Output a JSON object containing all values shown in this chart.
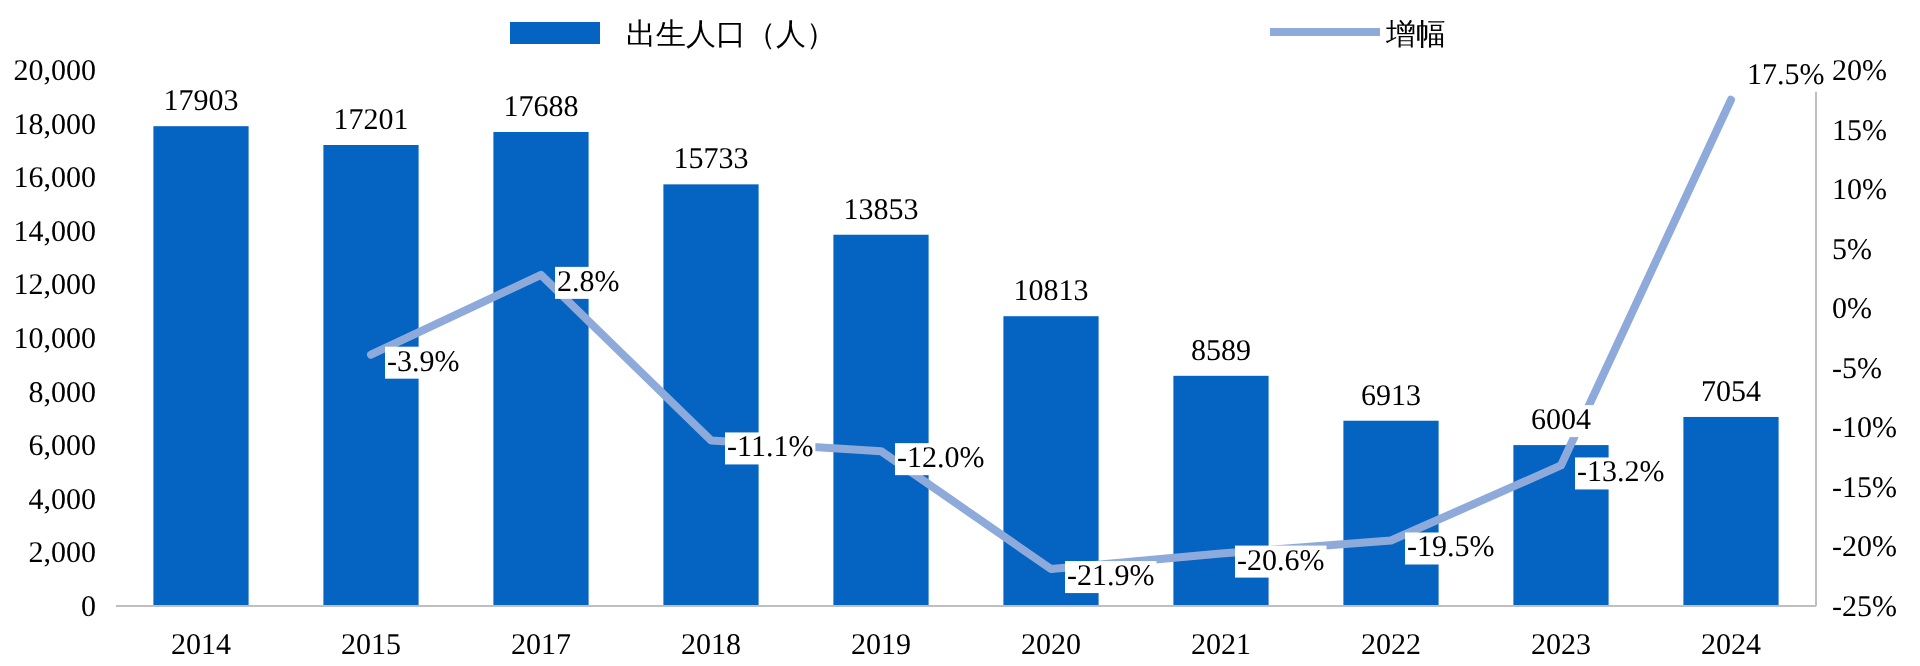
{
  "chart_data": {
    "type": "bar",
    "categories": [
      "2014",
      "2015",
      "2017",
      "2018",
      "2019",
      "2020",
      "2021",
      "2022",
      "2023",
      "2024"
    ],
    "series": [
      {
        "name": "出生人口（人）",
        "color": "#0563c1",
        "values": [
          17903,
          17201,
          17688,
          15733,
          13853,
          10813,
          8589,
          6913,
          6004,
          7054
        ],
        "value_labels": [
          "17903",
          "17201",
          "17688",
          "15733",
          "13853",
          "10813",
          "8589",
          "6913",
          "6004",
          "7054"
        ]
      },
      {
        "name": "增幅",
        "type": "line",
        "axis": "y2",
        "color": "#8eaadb",
        "values": [
          null,
          -3.9,
          2.8,
          -11.1,
          -12.0,
          -21.9,
          -20.6,
          -19.5,
          -13.2,
          17.5
        ],
        "value_labels": [
          null,
          "-3.9%",
          "2.8%",
          "-11.1%",
          "-12.0%",
          "-21.9%",
          "-20.6%",
          "-19.5%",
          "-13.2%",
          "17.5%"
        ]
      }
    ],
    "ylim": [
      0,
      20000
    ],
    "yticks": [
      {
        "value": 0,
        "label": "0"
      },
      {
        "value": 2000,
        "label": "2,000"
      },
      {
        "value": 4000,
        "label": "4,000"
      },
      {
        "value": 6000,
        "label": "6,000"
      },
      {
        "value": 8000,
        "label": "8,000"
      },
      {
        "value": 10000,
        "label": "10,000"
      },
      {
        "value": 12000,
        "label": "12,000"
      },
      {
        "value": 14000,
        "label": "14,000"
      },
      {
        "value": 16000,
        "label": "16,000"
      },
      {
        "value": 18000,
        "label": "18,000"
      },
      {
        "value": 20000,
        "label": "20,000"
      }
    ],
    "y2lim": [
      -25,
      20
    ],
    "y2ticks": [
      {
        "value": -25,
        "label": "-25%"
      },
      {
        "value": -20,
        "label": "-20%"
      },
      {
        "value": -15,
        "label": "-15%"
      },
      {
        "value": -10,
        "label": "-10%"
      },
      {
        "value": -5,
        "label": "-5%"
      },
      {
        "value": 0,
        "label": "0%"
      },
      {
        "value": 5,
        "label": "5%"
      },
      {
        "value": 10,
        "label": "10%"
      },
      {
        "value": 15,
        "label": "15%"
      },
      {
        "value": 20,
        "label": "20%"
      }
    ],
    "legend": "top",
    "grid": false,
    "marker": "none",
    "line_style": "solid"
  }
}
